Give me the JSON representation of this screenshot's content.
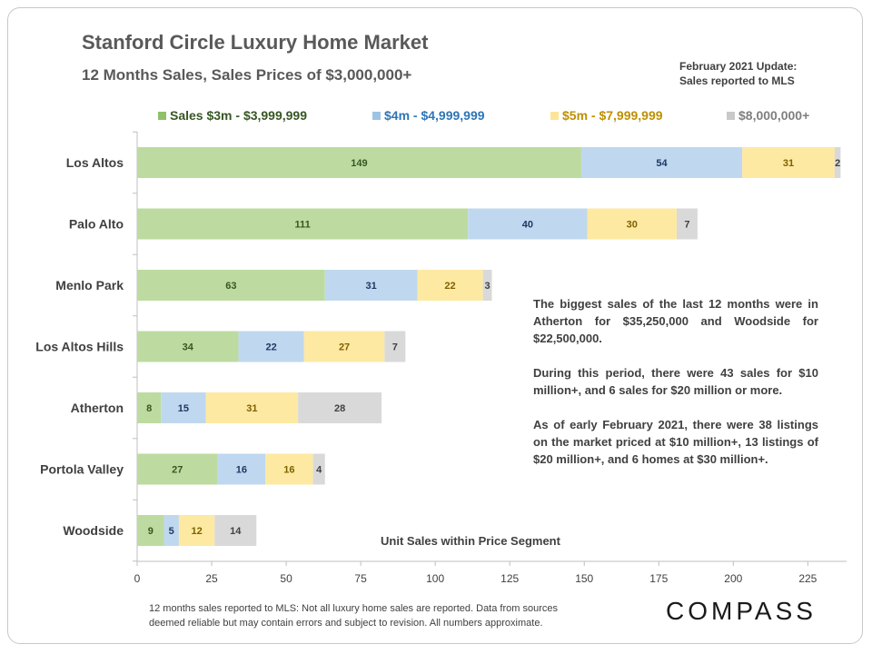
{
  "title": "Stanford Circle Luxury Home Market",
  "subtitle": "12 Months Sales, Sales Prices of $3,000,000+",
  "update_note": [
    "February 2021  Update:",
    "Sales reported to MLS"
  ],
  "notes": [
    "The biggest sales of the last 12 months were in Atherton for $35,250,000 and Woodside for $22,500,000.",
    "During this period, there were 43 sales for $10 million+, and 6 sales for $20 million or more.",
    "As of early February 2021, there were 38 listings on the market priced at $10 million+, 13 listings of $20 million+, and 6 homes at $30 million+."
  ],
  "footer": [
    "12 months sales reported to MLS: Not all luxury home sales are reported. Data from sources",
    "deemed reliable but may contain errors and subject to revision. All numbers approximate."
  ],
  "brand": "COMPASS",
  "chart_data": {
    "type": "bar",
    "orientation": "horizontal",
    "stacked": true,
    "xlabel": "Unit Sales within Price Segment",
    "xlim": [
      0,
      238
    ],
    "xticks": [
      0,
      25,
      50,
      75,
      100,
      125,
      150,
      175,
      200,
      225
    ],
    "legend_position": "top",
    "categories": [
      "Los Altos",
      "Palo Alto",
      "Menlo Park",
      "Los Altos Hills",
      "Atherton",
      "Portola Valley",
      "Woodside"
    ],
    "series": [
      {
        "name": "Sales $3m - $3,999,999",
        "color": "#bddba0",
        "label_color": "#375623",
        "legend_text_color": "#375623",
        "values": [
          149,
          111,
          63,
          34,
          8,
          27,
          9
        ]
      },
      {
        "name": "$4m - $4,999,999",
        "color": "#bfd8ef",
        "label_color": "#1f3864",
        "legend_text_color": "#2e75b6",
        "values": [
          54,
          40,
          31,
          22,
          15,
          16,
          5
        ]
      },
      {
        "name": "$5m - $7,999,999",
        "color": "#fde9a2",
        "label_color": "#7f6000",
        "legend_text_color": "#bf9000",
        "values": [
          31,
          30,
          22,
          27,
          31,
          16,
          12
        ]
      },
      {
        "name": "$8,000,000+",
        "color": "#d9d9d9",
        "label_color": "#404040",
        "legend_text_color": "#7f7f7f",
        "values": [
          2,
          7,
          3,
          7,
          28,
          4,
          14
        ]
      }
    ]
  }
}
